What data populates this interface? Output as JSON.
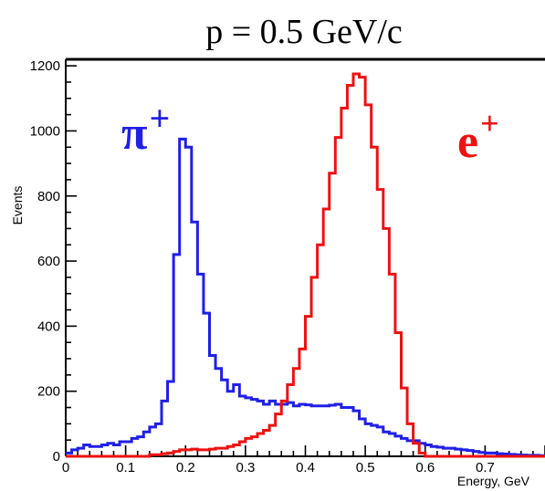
{
  "chart_data": {
    "type": "histogram",
    "title": "p  = 0.5 GeV/c",
    "xlabel": "Energy, GeV",
    "ylabel": "Events",
    "xlim": [
      0,
      0.8
    ],
    "ylim": [
      0,
      1220
    ],
    "x_ticks": [
      0,
      0.1,
      0.2,
      0.3,
      0.4,
      0.5,
      0.6,
      0.7
    ],
    "x_tick_labels": [
      "0",
      "0.1",
      "0.2",
      "0.3",
      "0.4",
      "0.5",
      "0.6",
      "0.7"
    ],
    "y_ticks": [
      0,
      200,
      400,
      600,
      800,
      1000,
      1200
    ],
    "y_tick_labels": [
      "0",
      "200",
      "400",
      "600",
      "800",
      "1000",
      "1200"
    ],
    "bin_width": 0.01,
    "series": [
      {
        "label_text": "π",
        "label_superscript": "+",
        "color": "#1f1fe6",
        "bin_starts": [
          0.0,
          0.01,
          0.02,
          0.03,
          0.04,
          0.05,
          0.06,
          0.07,
          0.08,
          0.09,
          0.1,
          0.11,
          0.12,
          0.13,
          0.14,
          0.15,
          0.16,
          0.17,
          0.18,
          0.19,
          0.2,
          0.21,
          0.22,
          0.23,
          0.24,
          0.25,
          0.26,
          0.27,
          0.28,
          0.29,
          0.3,
          0.31,
          0.32,
          0.33,
          0.34,
          0.35,
          0.36,
          0.37,
          0.38,
          0.39,
          0.4,
          0.41,
          0.42,
          0.43,
          0.44,
          0.45,
          0.46,
          0.47,
          0.48,
          0.49,
          0.5,
          0.51,
          0.52,
          0.53,
          0.54,
          0.55,
          0.56,
          0.57,
          0.58,
          0.59,
          0.6,
          0.61,
          0.62,
          0.63,
          0.64,
          0.65,
          0.66,
          0.67,
          0.68,
          0.69,
          0.7,
          0.71,
          0.72,
          0.73,
          0.74,
          0.75,
          0.76,
          0.77,
          0.78,
          0.79
        ],
        "counts": [
          10,
          20,
          25,
          35,
          30,
          30,
          35,
          40,
          35,
          45,
          45,
          55,
          60,
          75,
          90,
          100,
          170,
          230,
          620,
          975,
          950,
          720,
          560,
          440,
          310,
          270,
          235,
          200,
          220,
          185,
          180,
          175,
          170,
          160,
          170,
          160,
          160,
          165,
          155,
          160,
          158,
          155,
          155,
          155,
          157,
          160,
          150,
          150,
          140,
          115,
          100,
          95,
          90,
          75,
          70,
          62,
          55,
          48,
          48,
          40,
          35,
          30,
          28,
          25,
          25,
          22,
          20,
          18,
          15,
          12,
          10,
          10,
          8,
          7,
          6,
          5,
          4,
          3,
          3,
          2
        ]
      },
      {
        "label_text": "e",
        "label_superscript": "+",
        "color": "#ee1111",
        "bin_starts": [
          0.0,
          0.01,
          0.02,
          0.03,
          0.04,
          0.05,
          0.06,
          0.07,
          0.08,
          0.09,
          0.1,
          0.11,
          0.12,
          0.13,
          0.14,
          0.15,
          0.16,
          0.17,
          0.18,
          0.19,
          0.2,
          0.21,
          0.22,
          0.23,
          0.24,
          0.25,
          0.26,
          0.27,
          0.28,
          0.29,
          0.3,
          0.31,
          0.32,
          0.33,
          0.34,
          0.35,
          0.36,
          0.37,
          0.38,
          0.39,
          0.4,
          0.41,
          0.42,
          0.43,
          0.44,
          0.45,
          0.46,
          0.47,
          0.48,
          0.49,
          0.5,
          0.51,
          0.52,
          0.53,
          0.54,
          0.55,
          0.56,
          0.57,
          0.58,
          0.59,
          0.6,
          0.61,
          0.62,
          0.63,
          0.64,
          0.65,
          0.66,
          0.67,
          0.68,
          0.69,
          0.7,
          0.71,
          0.72,
          0.73,
          0.74,
          0.75,
          0.76,
          0.77,
          0.78,
          0.79
        ],
        "counts": [
          0,
          0,
          0,
          0,
          0,
          0,
          0,
          0,
          0,
          0,
          0,
          0,
          0,
          0,
          5,
          5,
          8,
          10,
          15,
          20,
          20,
          22,
          20,
          20,
          22,
          25,
          25,
          30,
          35,
          45,
          55,
          60,
          70,
          80,
          95,
          130,
          170,
          220,
          270,
          330,
          430,
          550,
          650,
          760,
          870,
          980,
          1070,
          1140,
          1175,
          1165,
          1080,
          950,
          820,
          700,
          560,
          380,
          210,
          100,
          40,
          10,
          0,
          0,
          0,
          0,
          0,
          0,
          0,
          0,
          0,
          0,
          0,
          0,
          0,
          0,
          0,
          0,
          0,
          0,
          0,
          0
        ]
      }
    ]
  }
}
